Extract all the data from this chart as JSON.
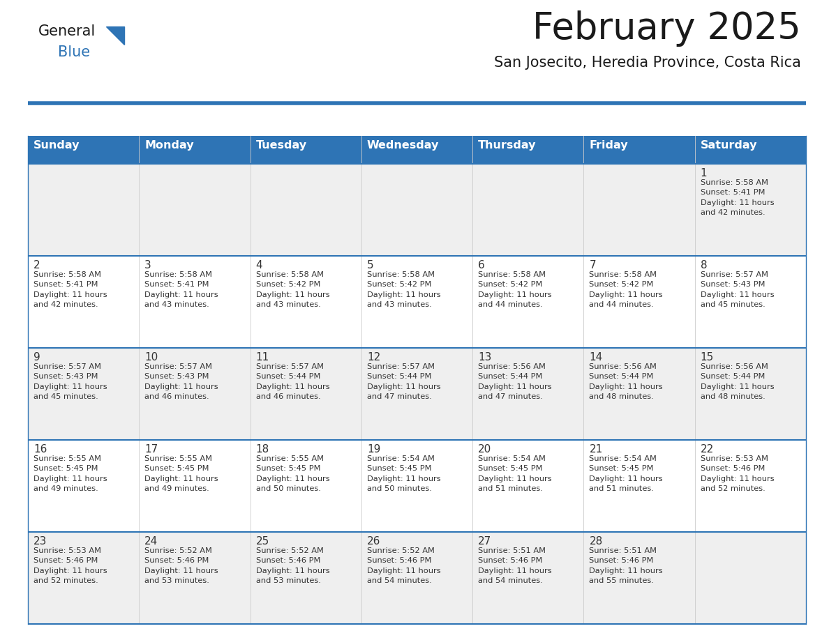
{
  "title": "February 2025",
  "subtitle": "San Josecito, Heredia Province, Costa Rica",
  "header_bg": "#2E74B5",
  "header_text": "#FFFFFF",
  "header_days": [
    "Sunday",
    "Monday",
    "Tuesday",
    "Wednesday",
    "Thursday",
    "Friday",
    "Saturday"
  ],
  "row_bg_even": "#EFEFEF",
  "row_bg_odd": "#FFFFFF",
  "border_color": "#2E74B5",
  "sep_line_color": "#2E74B5",
  "day_number_color": "#333333",
  "info_text_color": "#333333",
  "title_color": "#1A1A1A",
  "subtitle_color": "#1A1A1A",
  "logo_general_color": "#1A1A1A",
  "logo_blue_color": "#2E74B5",
  "week_rows": [
    {
      "days": [
        null,
        null,
        null,
        null,
        null,
        null,
        1
      ],
      "info": [
        null,
        null,
        null,
        null,
        null,
        null,
        "Sunrise: 5:58 AM\nSunset: 5:41 PM\nDaylight: 11 hours\nand 42 minutes."
      ]
    },
    {
      "days": [
        2,
        3,
        4,
        5,
        6,
        7,
        8
      ],
      "info": [
        "Sunrise: 5:58 AM\nSunset: 5:41 PM\nDaylight: 11 hours\nand 42 minutes.",
        "Sunrise: 5:58 AM\nSunset: 5:41 PM\nDaylight: 11 hours\nand 43 minutes.",
        "Sunrise: 5:58 AM\nSunset: 5:42 PM\nDaylight: 11 hours\nand 43 minutes.",
        "Sunrise: 5:58 AM\nSunset: 5:42 PM\nDaylight: 11 hours\nand 43 minutes.",
        "Sunrise: 5:58 AM\nSunset: 5:42 PM\nDaylight: 11 hours\nand 44 minutes.",
        "Sunrise: 5:58 AM\nSunset: 5:42 PM\nDaylight: 11 hours\nand 44 minutes.",
        "Sunrise: 5:57 AM\nSunset: 5:43 PM\nDaylight: 11 hours\nand 45 minutes."
      ]
    },
    {
      "days": [
        9,
        10,
        11,
        12,
        13,
        14,
        15
      ],
      "info": [
        "Sunrise: 5:57 AM\nSunset: 5:43 PM\nDaylight: 11 hours\nand 45 minutes.",
        "Sunrise: 5:57 AM\nSunset: 5:43 PM\nDaylight: 11 hours\nand 46 minutes.",
        "Sunrise: 5:57 AM\nSunset: 5:44 PM\nDaylight: 11 hours\nand 46 minutes.",
        "Sunrise: 5:57 AM\nSunset: 5:44 PM\nDaylight: 11 hours\nand 47 minutes.",
        "Sunrise: 5:56 AM\nSunset: 5:44 PM\nDaylight: 11 hours\nand 47 minutes.",
        "Sunrise: 5:56 AM\nSunset: 5:44 PM\nDaylight: 11 hours\nand 48 minutes.",
        "Sunrise: 5:56 AM\nSunset: 5:44 PM\nDaylight: 11 hours\nand 48 minutes."
      ]
    },
    {
      "days": [
        16,
        17,
        18,
        19,
        20,
        21,
        22
      ],
      "info": [
        "Sunrise: 5:55 AM\nSunset: 5:45 PM\nDaylight: 11 hours\nand 49 minutes.",
        "Sunrise: 5:55 AM\nSunset: 5:45 PM\nDaylight: 11 hours\nand 49 minutes.",
        "Sunrise: 5:55 AM\nSunset: 5:45 PM\nDaylight: 11 hours\nand 50 minutes.",
        "Sunrise: 5:54 AM\nSunset: 5:45 PM\nDaylight: 11 hours\nand 50 minutes.",
        "Sunrise: 5:54 AM\nSunset: 5:45 PM\nDaylight: 11 hours\nand 51 minutes.",
        "Sunrise: 5:54 AM\nSunset: 5:45 PM\nDaylight: 11 hours\nand 51 minutes.",
        "Sunrise: 5:53 AM\nSunset: 5:46 PM\nDaylight: 11 hours\nand 52 minutes."
      ]
    },
    {
      "days": [
        23,
        24,
        25,
        26,
        27,
        28,
        null
      ],
      "info": [
        "Sunrise: 5:53 AM\nSunset: 5:46 PM\nDaylight: 11 hours\nand 52 minutes.",
        "Sunrise: 5:52 AM\nSunset: 5:46 PM\nDaylight: 11 hours\nand 53 minutes.",
        "Sunrise: 5:52 AM\nSunset: 5:46 PM\nDaylight: 11 hours\nand 53 minutes.",
        "Sunrise: 5:52 AM\nSunset: 5:46 PM\nDaylight: 11 hours\nand 54 minutes.",
        "Sunrise: 5:51 AM\nSunset: 5:46 PM\nDaylight: 11 hours\nand 54 minutes.",
        "Sunrise: 5:51 AM\nSunset: 5:46 PM\nDaylight: 11 hours\nand 55 minutes.",
        null
      ]
    }
  ]
}
